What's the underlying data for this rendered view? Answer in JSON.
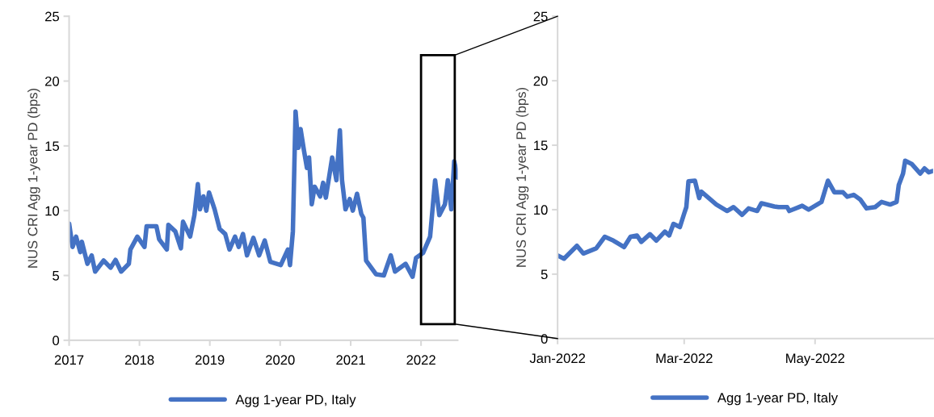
{
  "chart_data": [
    {
      "type": "line",
      "ylabel": "NUS CRI Agg 1-year PD (bps)",
      "ylim": [
        0,
        25
      ],
      "yticks": [
        0,
        5,
        10,
        15,
        20,
        25
      ],
      "xlim": [
        "2017-01-01",
        "2022-07-10"
      ],
      "xticks": [
        {
          "value": "2017-01-01",
          "label": "2017"
        },
        {
          "value": "2018-01-01",
          "label": "2018"
        },
        {
          "value": "2019-01-01",
          "label": "2019"
        },
        {
          "value": "2020-01-01",
          "label": "2020"
        },
        {
          "value": "2021-01-01",
          "label": "2021"
        },
        {
          "value": "2022-01-01",
          "label": "2022"
        }
      ],
      "grid": false,
      "legend": "bottom",
      "series": [
        {
          "name": "Agg 1-year PD, Italy",
          "color": "#4472c4",
          "x": [
            "2017-01-01",
            "2017-01-19",
            "2017-02-06",
            "2017-02-28",
            "2017-03-08",
            "2017-04-06",
            "2017-04-28",
            "2017-05-16",
            "2017-06-29",
            "2017-08-04",
            "2017-08-30",
            "2017-09-28",
            "2017-11-07",
            "2017-11-15",
            "2017-12-21",
            "2018-01-27",
            "2018-02-07",
            "2018-03-30",
            "2018-04-13",
            "2018-05-23",
            "2018-05-31",
            "2018-07-06",
            "2018-08-04",
            "2018-08-15",
            "2018-09-21",
            "2018-10-13",
            "2018-10-31",
            "2018-11-11",
            "2018-11-29",
            "2018-12-14",
            "2018-12-28",
            "2019-01-26",
            "2019-02-21",
            "2019-03-22",
            "2019-04-13",
            "2019-05-12",
            "2019-05-31",
            "2019-06-22",
            "2019-07-13",
            "2019-08-15",
            "2019-09-14",
            "2019-10-13",
            "2019-11-11",
            "2020-01-04",
            "2020-02-10",
            "2020-02-21",
            "2020-03-07",
            "2020-03-21",
            "2020-04-05",
            "2020-04-16",
            "2020-05-04",
            "2020-05-19",
            "2020-05-30",
            "2020-06-13",
            "2020-06-28",
            "2020-07-27",
            "2020-08-11",
            "2020-08-25",
            "2020-09-27",
            "2020-10-19",
            "2020-11-06",
            "2020-11-17",
            "2020-12-05",
            "2020-12-27",
            "2021-01-12",
            "2021-02-03",
            "2021-02-25",
            "2021-03-08",
            "2021-03-22",
            "2021-05-12",
            "2021-06-22",
            "2021-07-28",
            "2021-08-19",
            "2021-10-13",
            "2021-11-18",
            "2021-12-06",
            "2022-01-12",
            "2022-02-17",
            "2022-03-15",
            "2022-04-06",
            "2022-05-05",
            "2022-05-20",
            "2022-06-07",
            "2022-06-22",
            "2022-07-10"
          ],
          "values": [
            9.0,
            7.2,
            8.0,
            6.8,
            7.6,
            5.9,
            6.55,
            5.3,
            6.15,
            5.6,
            6.2,
            5.3,
            5.9,
            7.0,
            8.0,
            7.2,
            8.8,
            8.8,
            7.8,
            7.0,
            8.9,
            8.4,
            7.1,
            9.15,
            8.0,
            9.65,
            12.05,
            10.1,
            11.1,
            10.0,
            11.4,
            10.1,
            8.6,
            8.2,
            7.0,
            8.0,
            7.2,
            8.2,
            6.55,
            7.9,
            6.55,
            7.7,
            6.05,
            5.8,
            7.0,
            5.8,
            8.4,
            17.65,
            14.85,
            16.3,
            14.6,
            13.3,
            14.1,
            10.5,
            11.85,
            11.1,
            12.15,
            11.0,
            14.1,
            12.35,
            16.2,
            12.35,
            10.1,
            10.9,
            10.0,
            11.3,
            9.75,
            9.45,
            6.15,
            5.1,
            5.0,
            6.55,
            5.3,
            5.9,
            4.9,
            6.35,
            6.75,
            8.0,
            12.35,
            9.65,
            10.5,
            12.35,
            10.1,
            13.8,
            12.55
          ]
        }
      ]
    },
    {
      "type": "line",
      "ylabel": "NUS CRI Agg 1-year PD (bps)",
      "ylim": [
        0,
        25
      ],
      "yticks": [
        0,
        5,
        10,
        15,
        20,
        25
      ],
      "xlim": [
        "2022-01-01",
        "2022-06-25"
      ],
      "xticks": [
        {
          "value": "2022-01-01",
          "label": "Jan-2022"
        },
        {
          "value": "2022-03-01",
          "label": "Mar-2022"
        },
        {
          "value": "2022-05-01",
          "label": "May-2022"
        }
      ],
      "grid": false,
      "legend": "bottom",
      "series": [
        {
          "name": "Agg 1-year PD, Italy",
          "color": "#4472c4",
          "x": [
            "2022-01-01",
            "2022-01-04",
            "2022-01-10",
            "2022-01-13",
            "2022-01-19",
            "2022-01-23",
            "2022-01-27",
            "2022-02-01",
            "2022-02-04",
            "2022-02-07",
            "2022-02-09",
            "2022-02-13",
            "2022-02-16",
            "2022-02-20",
            "2022-02-22",
            "2022-02-24",
            "2022-02-27",
            "2022-03-01",
            "2022-03-02",
            "2022-03-03",
            "2022-03-06",
            "2022-03-08",
            "2022-03-09",
            "2022-03-16",
            "2022-03-21",
            "2022-03-24",
            "2022-03-28",
            "2022-03-31",
            "2022-04-04",
            "2022-04-06",
            "2022-04-12",
            "2022-04-14",
            "2022-04-18",
            "2022-04-19",
            "2022-04-25",
            "2022-04-28",
            "2022-05-04",
            "2022-05-07",
            "2022-05-10",
            "2022-05-14",
            "2022-05-16",
            "2022-05-19",
            "2022-05-22",
            "2022-05-25",
            "2022-05-29",
            "2022-06-01",
            "2022-06-05",
            "2022-06-08",
            "2022-06-09",
            "2022-06-11",
            "2022-06-12",
            "2022-06-15",
            "2022-06-19",
            "2022-06-21",
            "2022-06-23",
            "2022-06-25"
          ],
          "values": [
            6.45,
            6.2,
            7.2,
            6.6,
            7.0,
            7.9,
            7.6,
            7.1,
            7.9,
            8.0,
            7.5,
            8.1,
            7.6,
            8.3,
            8.0,
            8.9,
            8.65,
            9.7,
            10.2,
            12.2,
            12.25,
            10.9,
            11.4,
            10.4,
            9.9,
            10.2,
            9.6,
            10.1,
            9.9,
            10.5,
            10.25,
            10.2,
            10.2,
            9.9,
            10.3,
            10.0,
            10.6,
            12.25,
            11.35,
            11.35,
            11.0,
            11.15,
            10.8,
            10.1,
            10.2,
            10.6,
            10.4,
            10.6,
            11.9,
            12.8,
            13.8,
            13.55,
            12.8,
            13.2,
            12.9,
            13.0
          ]
        }
      ]
    }
  ]
}
